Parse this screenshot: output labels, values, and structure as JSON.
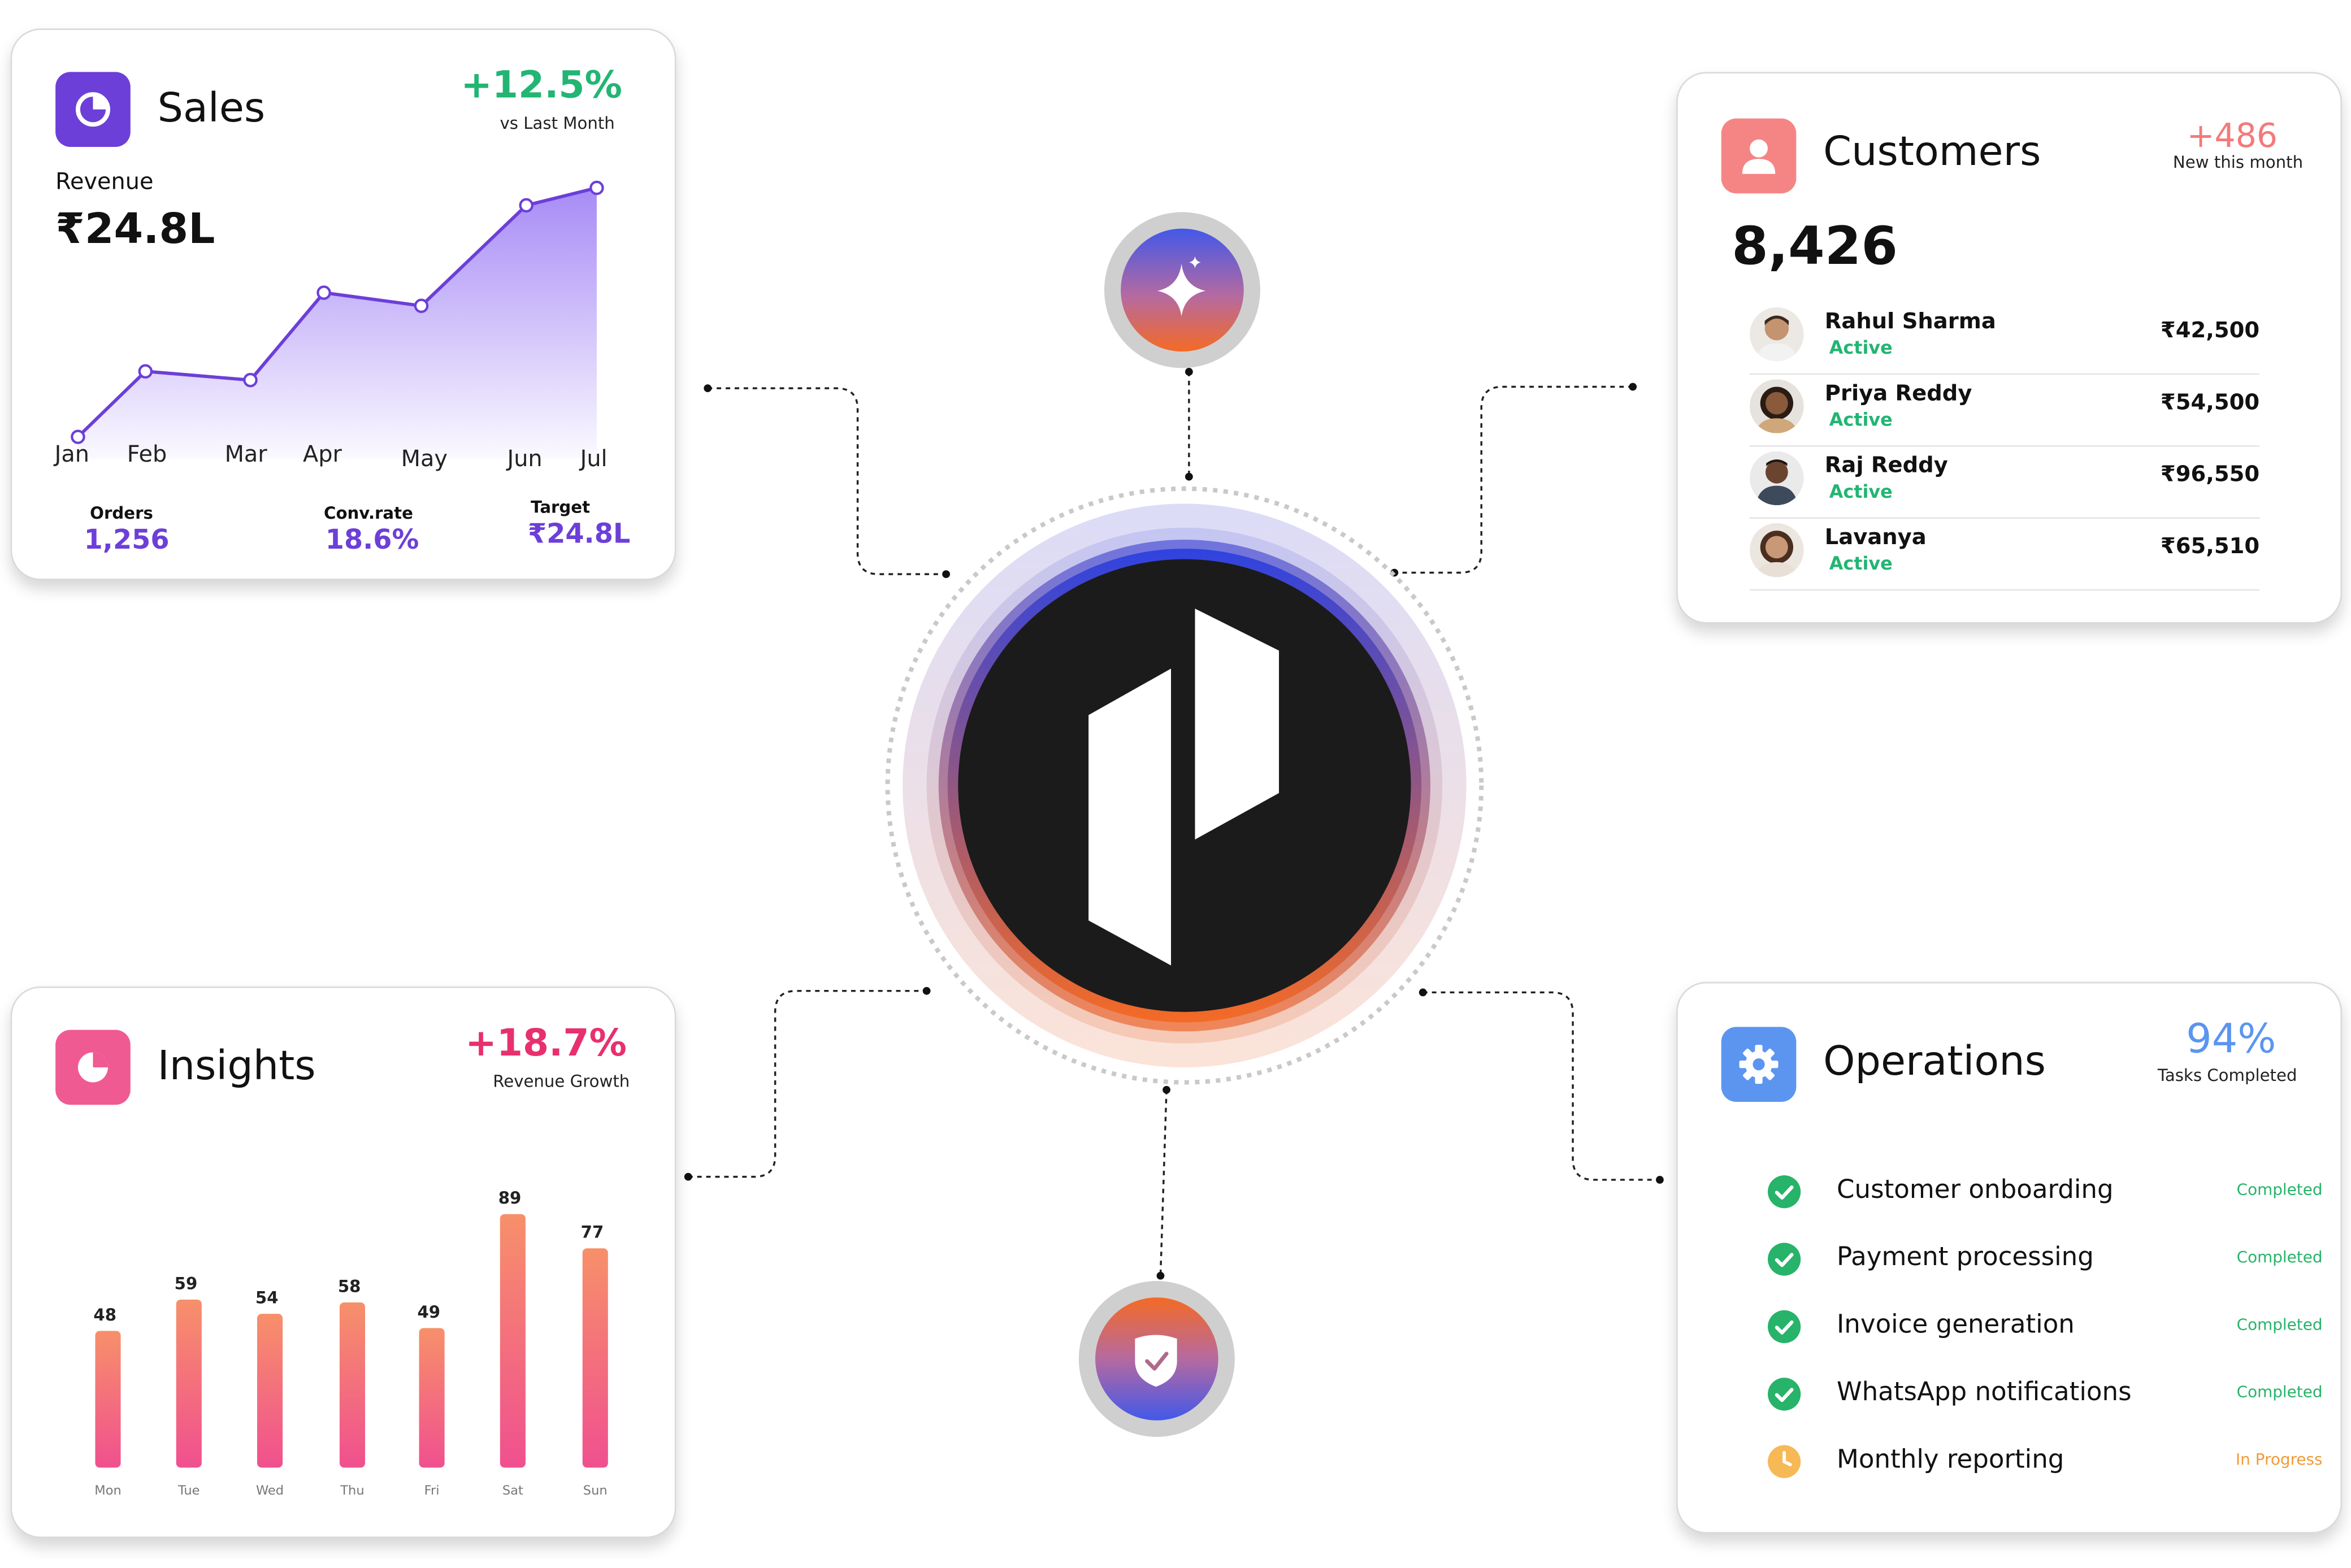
{
  "sales": {
    "title": "Sales",
    "change": "+12.5%",
    "change_caption": "vs Last Month",
    "revenue_label": "Revenue",
    "revenue_value": "₹24.8L",
    "months": [
      "Jan",
      "Feb",
      "Mar",
      "Apr",
      "May",
      "Jun",
      "Jul"
    ],
    "orders_label": "Orders",
    "orders_value": "1,256",
    "conv_label": "Conv.rate",
    "conv_value": "18.6%",
    "target_label": "Target",
    "target_value": "₹24.8L",
    "icon": "pie-chart-icon",
    "accent": "#6c3fd8"
  },
  "customers": {
    "title": "Customers",
    "change": "+486",
    "change_caption": "New this month",
    "count": "8,426",
    "icon": "user-icon",
    "accent": "#f37a7a",
    "rows": [
      {
        "name": "Rahul Sharma",
        "status": "Active",
        "amount": "₹42,500"
      },
      {
        "name": "Priya Reddy",
        "status": "Active",
        "amount": "₹54,500"
      },
      {
        "name": "Raj Reddy",
        "status": "Active",
        "amount": "₹96,550"
      },
      {
        "name": "Lavanya",
        "status": "Active",
        "amount": "₹65,510"
      }
    ]
  },
  "insights": {
    "title": "Insights",
    "change": "+18.7%",
    "change_caption": "Revenue Growth",
    "icon": "pie-chart-icon",
    "accent": "#e8306f"
  },
  "operations": {
    "title": "Operations",
    "change": "94%",
    "change_caption": "Tasks Completed",
    "icon": "gear-icon",
    "accent": "#5b95f0",
    "tasks": [
      {
        "label": "Customer onboarding",
        "status": "Completed",
        "state": "done"
      },
      {
        "label": "Payment processing",
        "status": "Completed",
        "state": "done"
      },
      {
        "label": "Invoice generation",
        "status": "Completed",
        "state": "done"
      },
      {
        "label": "WhatsApp notifications",
        "status": "Completed",
        "state": "done"
      },
      {
        "label": "Monthly reporting",
        "status": "In Progress",
        "state": "progress"
      }
    ]
  },
  "hub": {
    "center_icon": "logo-mark-icon",
    "top_icon": "sparkle-icon",
    "bottom_icon": "shield-check-icon"
  },
  "chart_data": [
    {
      "type": "area",
      "x": [
        "Jan",
        "Feb",
        "Mar",
        "Apr",
        "May",
        "Jun",
        "Jul"
      ],
      "y": [
        5,
        20,
        18,
        38,
        35,
        58,
        62
      ],
      "title": "",
      "xlabel": "",
      "ylabel": "",
      "ylim": [
        0,
        70
      ],
      "grid": false,
      "color": "#6c3fd8"
    },
    {
      "type": "bar",
      "categories": [
        "Mon",
        "Tue",
        "Wed",
        "Thu",
        "Fri",
        "Sat",
        "Sun"
      ],
      "values": [
        48,
        59,
        54,
        58,
        49,
        89,
        77
      ],
      "title": "",
      "xlabel": "",
      "ylabel": "",
      "grid": false,
      "colors": [
        "#f7906a",
        "#f0508f"
      ]
    }
  ]
}
